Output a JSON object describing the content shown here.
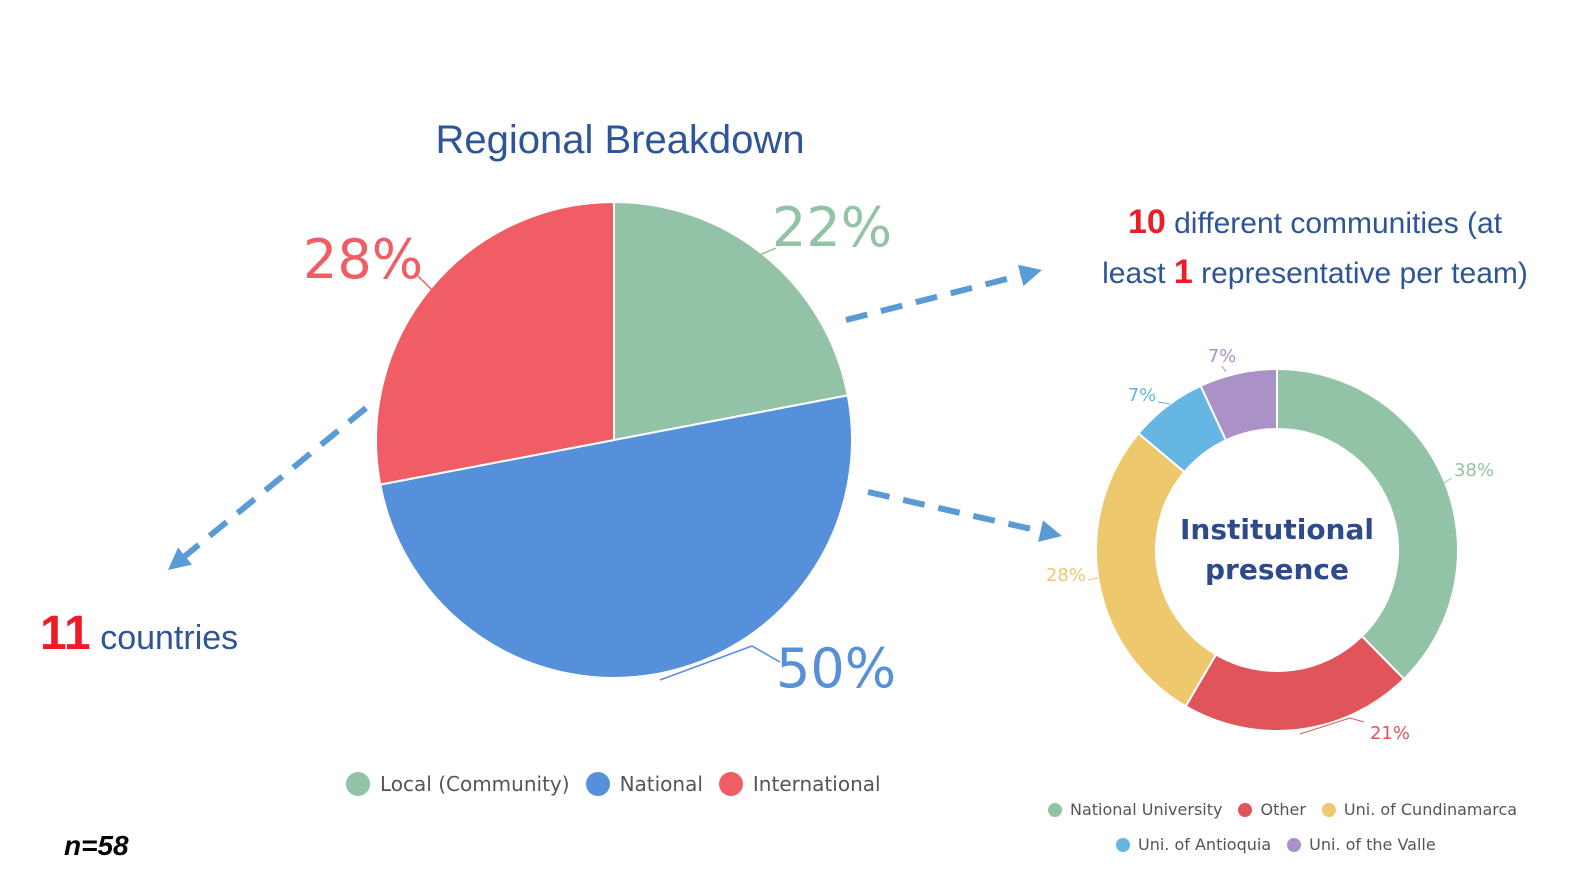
{
  "chart_data": [
    {
      "type": "pie",
      "title": "Regional Breakdown",
      "categories": [
        "Local (Community)",
        "National",
        "International"
      ],
      "values": [
        22,
        50,
        28
      ],
      "labels": [
        "22%",
        "50%",
        "28%"
      ],
      "colors": [
        "#93c3a6",
        "#5790da",
        "#f05d65"
      ],
      "legend": "bottom"
    },
    {
      "type": "pie",
      "subtype": "donut",
      "center_label": "Institutional presence",
      "categories": [
        "National University",
        "Other",
        "Uni. of Cundinamarca",
        "Uni. of Antioquia",
        "Uni. of the Valle"
      ],
      "values": [
        38,
        21,
        28,
        7,
        7
      ],
      "labels": [
        "38%",
        "21%",
        "28%",
        "7%",
        "7%"
      ],
      "colors": [
        "#93c3a6",
        "#df555a",
        "#eec86d",
        "#65b6e2",
        "#aa91c6"
      ],
      "legend": "bottom"
    }
  ],
  "annotations": {
    "countries_number": "11",
    "countries_text": "countries",
    "communities_number": "10",
    "communities_text_1": "different communities (at",
    "communities_text_2": "least",
    "communities_rep_number": "1",
    "communities_text_3": "representative per team)",
    "sample_size": "n=58"
  },
  "arrow_color": "#5b9bd5"
}
